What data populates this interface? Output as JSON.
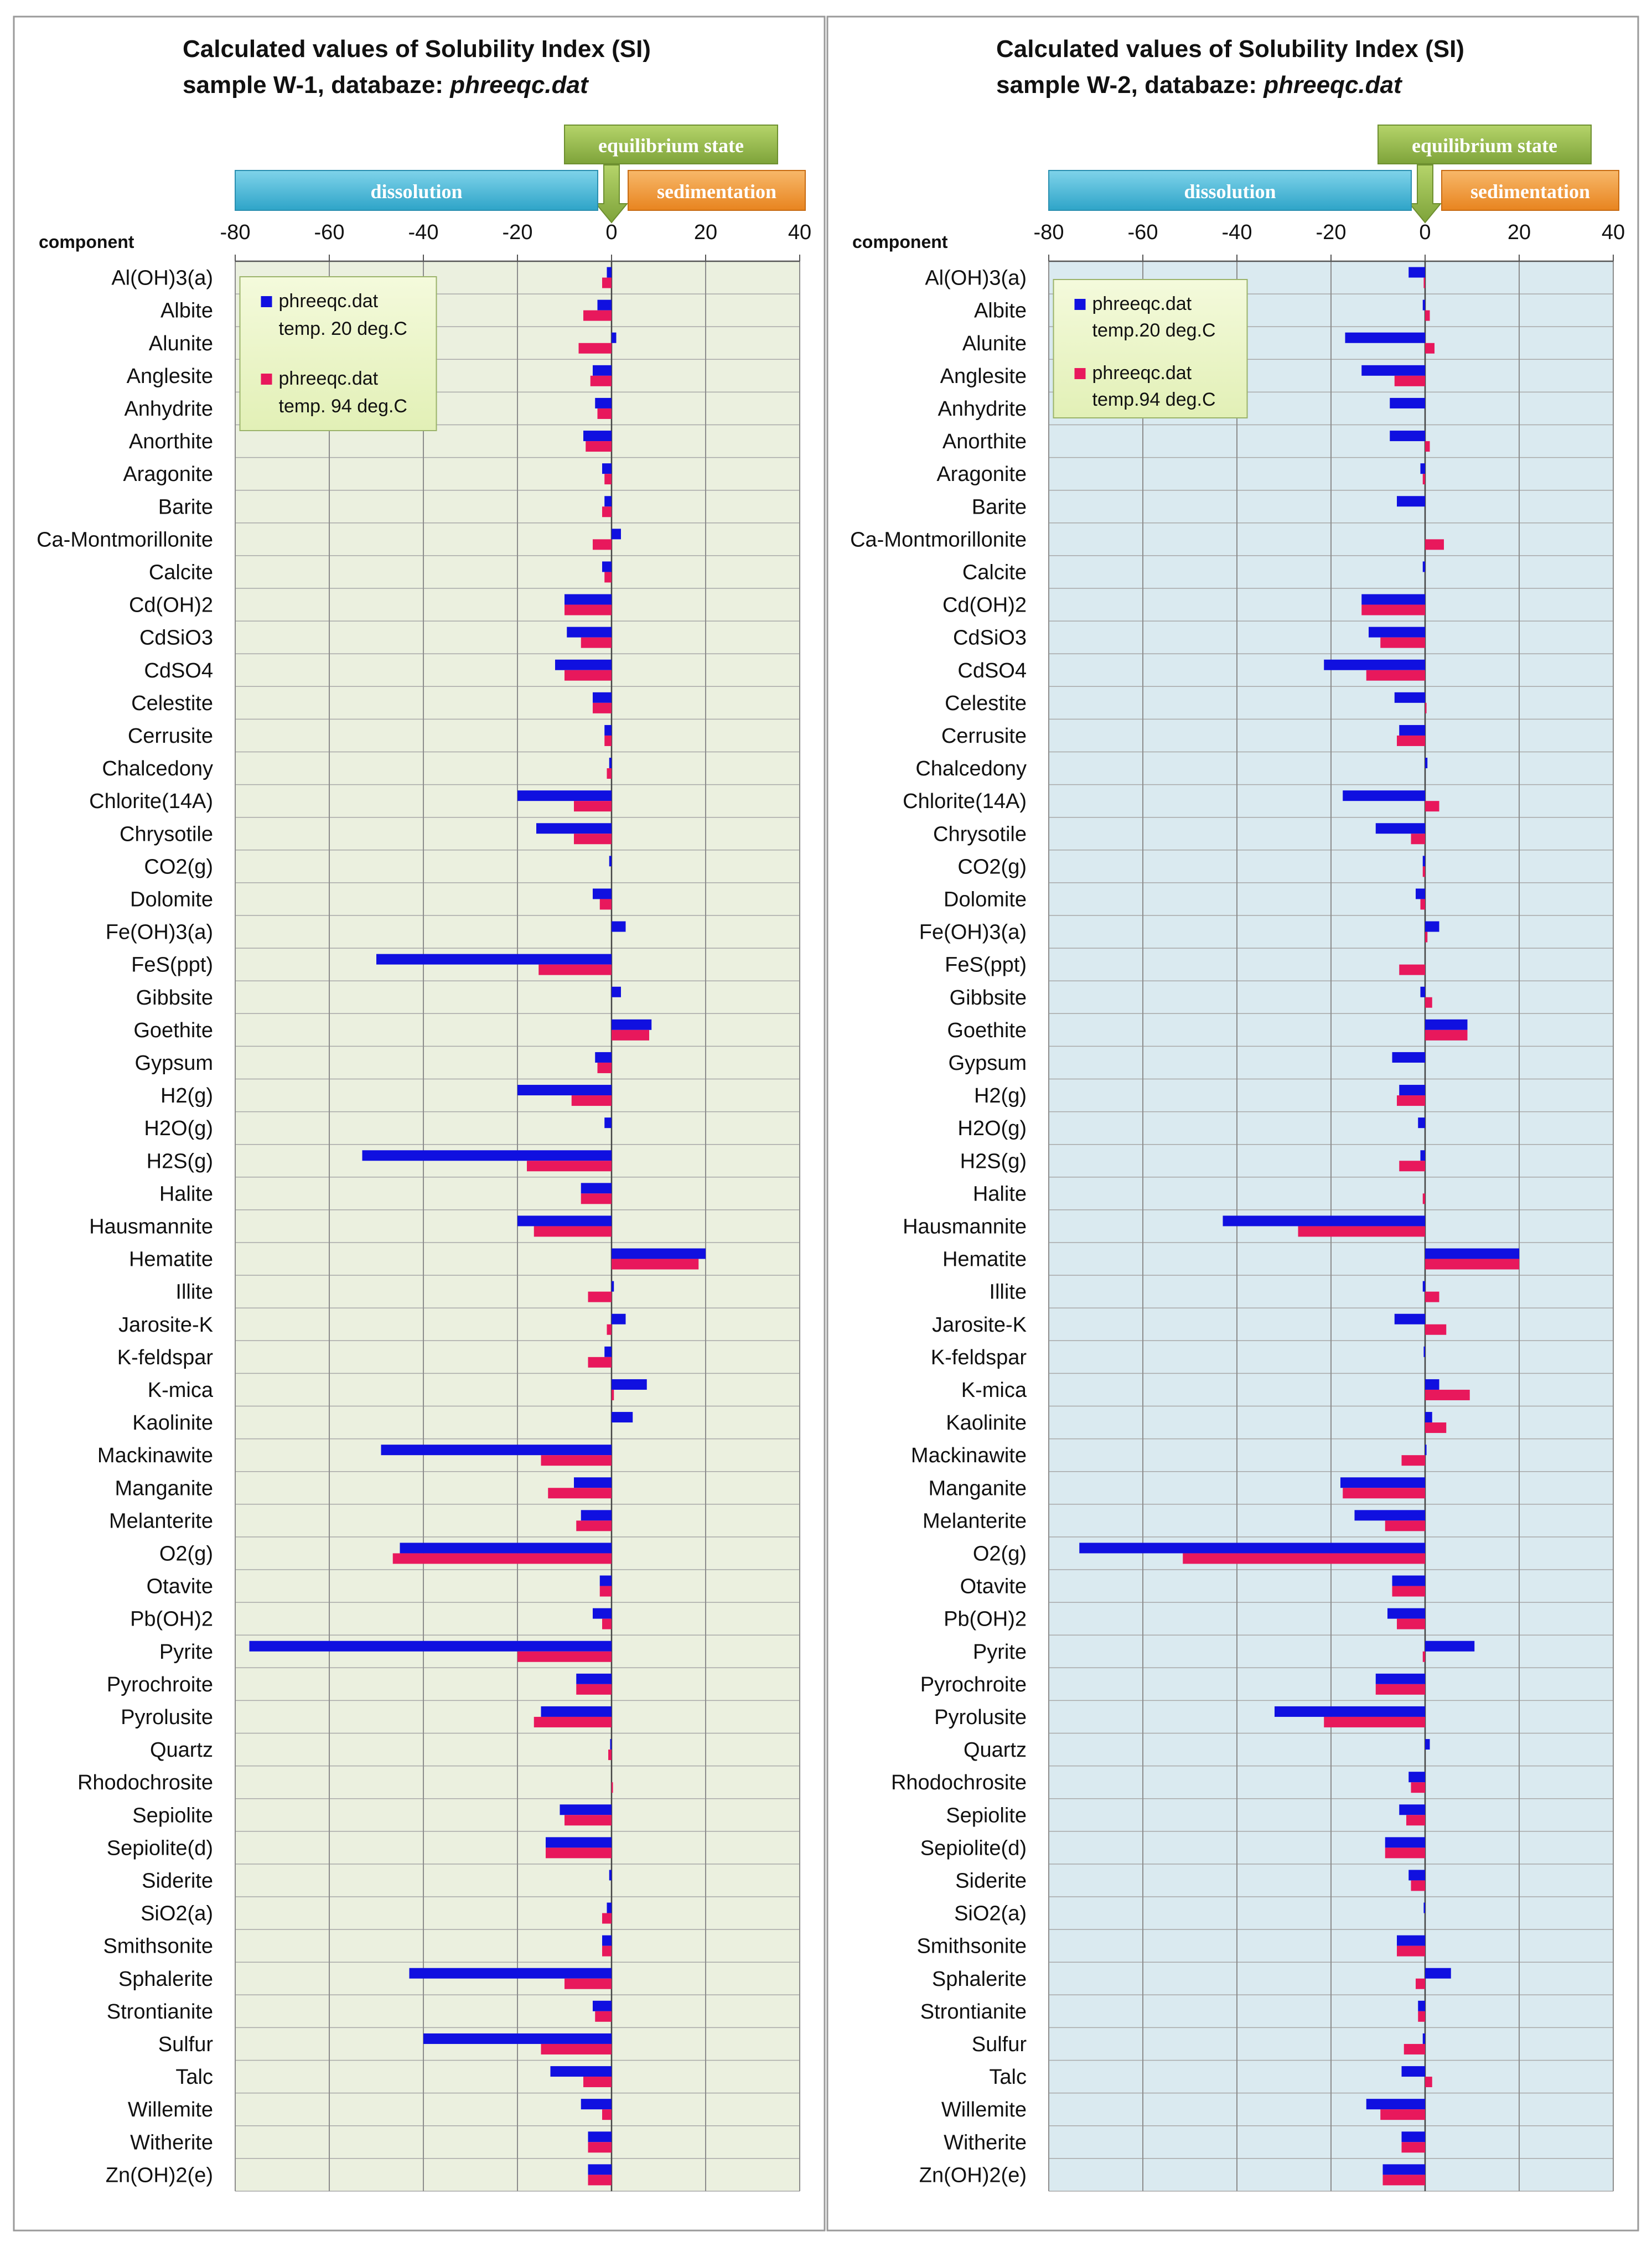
{
  "chart_data": [
    {
      "type": "bar",
      "title_line1": "Calculated values of Solubility Index (SI)",
      "title_line2_prefix": "sample W-1, databaze: ",
      "title_line2_db": "phreeqc.dat",
      "ylabel": "component",
      "xlim": [
        -80,
        40
      ],
      "xticks": [
        -80,
        -60,
        -40,
        -20,
        0,
        20,
        40
      ],
      "banners": {
        "equilibrium": "equilibrium  state",
        "dissolution": "dissolution",
        "sedimentation": "sedimentation"
      },
      "legend": [
        {
          "name_line1": "phreeqc.dat",
          "name_line2": "temp. 20 deg.C",
          "color": "#1010e0"
        },
        {
          "name_line1": "phreeqc.dat",
          "name_line2": "temp. 94 deg.C",
          "color": "#e8185c"
        }
      ],
      "plot_bg": "#ebf0df",
      "categories": [
        "Al(OH)3(a)",
        "Albite",
        "Alunite",
        "Anglesite",
        "Anhydrite",
        "Anorthite",
        "Aragonite",
        "Barite",
        "Ca-Montmorillonite",
        "Calcite",
        "Cd(OH)2",
        "CdSiO3",
        "CdSO4",
        "Celestite",
        "Cerrusite",
        "Chalcedony",
        "Chlorite(14A)",
        "Chrysotile",
        "CO2(g)",
        "Dolomite",
        "Fe(OH)3(a)",
        "FeS(ppt)",
        "Gibbsite",
        "Goethite",
        "Gypsum",
        "H2(g)",
        "H2O(g)",
        "H2S(g)",
        "Halite",
        "Hausmannite",
        "Hematite",
        "Illite",
        "Jarosite-K",
        "K-feldspar",
        "K-mica",
        "Kaolinite",
        "Mackinawite",
        "Manganite",
        "Melanterite",
        "O2(g)",
        "Otavite",
        "Pb(OH)2",
        "Pyrite",
        "Pyrochroite",
        "Pyrolusite",
        "Quartz",
        "Rhodochrosite",
        "Sepiolite",
        "Sepiolite(d)",
        "Siderite",
        "SiO2(a)",
        "Smithsonite",
        "Sphalerite",
        "Strontianite",
        "Sulfur",
        "Talc",
        "Willemite",
        "Witherite",
        "Zn(OH)2(e)"
      ],
      "series": [
        {
          "name": "temp. 20 deg.C",
          "values": [
            -1,
            -3,
            1,
            -4,
            -3.5,
            -6,
            -2,
            -1.5,
            2,
            -2,
            -10,
            -9.5,
            -12,
            -4,
            -1.5,
            -0.5,
            -20,
            -16,
            -0.5,
            -4,
            3,
            -50,
            2,
            8.5,
            -3.5,
            -20,
            -1.5,
            -53,
            -6.5,
            -20,
            20,
            0.5,
            3,
            -1.5,
            7.5,
            4.5,
            -49,
            -8,
            -6.5,
            -45,
            -2.5,
            -4,
            -77,
            -7.5,
            -15,
            -0.3,
            0,
            -11,
            -14,
            -0.5,
            -1,
            -2,
            -43,
            -4,
            -40,
            -13,
            -6.5,
            -5,
            -5
          ]
        },
        {
          "name": "temp. 94 deg.C",
          "values": [
            -2,
            -6,
            -7,
            -4.5,
            -3,
            -5.5,
            -1.5,
            -2,
            -4,
            -1.5,
            -10,
            -6.5,
            -10,
            -4,
            -1.5,
            -1,
            -8,
            -8,
            0,
            -2.5,
            0,
            -15.5,
            0,
            8,
            -3,
            -8.5,
            0,
            -18,
            -6.5,
            -16.5,
            18.5,
            -5,
            -1,
            -5,
            0.5,
            0,
            -15,
            -13.5,
            -7.5,
            -46.5,
            -2.5,
            -2,
            -20,
            -7.5,
            -16.5,
            -0.7,
            0.3,
            -10,
            -14,
            0,
            -2,
            -2,
            -10,
            -3.5,
            -15,
            -6,
            -2,
            -5,
            -5
          ]
        }
      ]
    },
    {
      "type": "bar",
      "title_line1": "Calculated values of Solubility Index (SI)",
      "title_line2_prefix": "sample W-2, databaze: ",
      "title_line2_db": "phreeqc.dat",
      "ylabel": "component",
      "xlim": [
        -80,
        40
      ],
      "xticks": [
        -80,
        -60,
        -40,
        -20,
        0,
        20,
        40
      ],
      "banners": {
        "equilibrium": "equilibrium  state",
        "dissolution": "dissolution",
        "sedimentation": "sedimentation"
      },
      "legend": [
        {
          "name_line1": "phreeqc.dat",
          "name_line2": "temp.20 deg.C",
          "color": "#1010e0"
        },
        {
          "name_line1": "phreeqc.dat",
          "name_line2": "temp.94 deg.C",
          "color": "#e8185c"
        }
      ],
      "plot_bg": "#daeaf0",
      "categories": [
        "Al(OH)3(a)",
        "Albite",
        "Alunite",
        "Anglesite",
        "Anhydrite",
        "Anorthite",
        "Aragonite",
        "Barite",
        "Ca-Montmorillonite",
        "Calcite",
        "Cd(OH)2",
        "CdSiO3",
        "CdSO4",
        "Celestite",
        "Cerrusite",
        "Chalcedony",
        "Chlorite(14A)",
        "Chrysotile",
        "CO2(g)",
        "Dolomite",
        "Fe(OH)3(a)",
        "FeS(ppt)",
        "Gibbsite",
        "Goethite",
        "Gypsum",
        "H2(g)",
        "H2O(g)",
        "H2S(g)",
        "Halite",
        "Hausmannite",
        "Hematite",
        "Illite",
        "Jarosite-K",
        "K-feldspar",
        "K-mica",
        "Kaolinite",
        "Mackinawite",
        "Manganite",
        "Melanterite",
        "O2(g)",
        "Otavite",
        "Pb(OH)2",
        "Pyrite",
        "Pyrochroite",
        "Pyrolusite",
        "Quartz",
        "Rhodochrosite",
        "Sepiolite",
        "Sepiolite(d)",
        "Siderite",
        "SiO2(a)",
        "Smithsonite",
        "Sphalerite",
        "Strontianite",
        "Sulfur",
        "Talc",
        "Willemite",
        "Witherite",
        "Zn(OH)2(e)"
      ],
      "series": [
        {
          "name": "temp.20 deg.C",
          "values": [
            -3.5,
            -0.5,
            -17,
            -13.5,
            -7.5,
            -7.5,
            -1,
            -6,
            0,
            -0.5,
            -13.5,
            -12,
            -21.5,
            -6.5,
            -5.5,
            0.5,
            -17.5,
            -10.5,
            -0.5,
            -2,
            3,
            0,
            -1,
            9,
            -7,
            -5.5,
            -1.5,
            -1,
            0,
            -43,
            20,
            -0.5,
            -6.5,
            -0.3,
            3,
            1.5,
            0.3,
            -18,
            -15,
            -73.5,
            -7,
            -8,
            10.5,
            -10.5,
            -32,
            1,
            -3.5,
            -5.5,
            -8.5,
            -3.5,
            -0.3,
            -6,
            5.5,
            -1.5,
            -0.5,
            -5,
            -12.5,
            -5,
            -9
          ]
        },
        {
          "name": "temp.94 deg.C",
          "values": [
            -0.3,
            1,
            2,
            -6.5,
            0,
            1,
            -0.5,
            0,
            4,
            0,
            -13.5,
            -9.5,
            -12.5,
            0.3,
            -6,
            0,
            3,
            -3,
            -0.5,
            -1,
            0.5,
            -5.5,
            1.5,
            9,
            0,
            -6,
            0,
            -5.5,
            -0.5,
            -27,
            20,
            3,
            4.5,
            0,
            9.5,
            4.5,
            -5,
            -17.5,
            -8.5,
            -51.5,
            -7,
            -6,
            -0.5,
            -10.5,
            -21.5,
            0,
            -3,
            -4,
            -8.5,
            -3,
            0,
            -6,
            -2,
            -1.5,
            -4.5,
            1.5,
            -9.5,
            -5,
            -9
          ]
        }
      ]
    }
  ]
}
